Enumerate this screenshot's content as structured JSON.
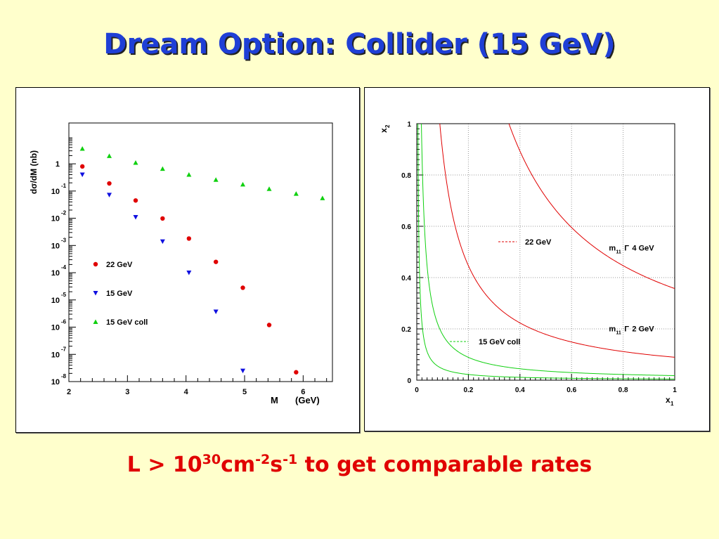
{
  "slide": {
    "title": "Dream Option: Collider (15 GeV)",
    "caption": {
      "prefix": "L > 10",
      "exp1": "30",
      "unit1": "cm",
      "exp2": "-2",
      "unit2": "s",
      "exp3": "-1",
      "suffix": " to get comparable rates"
    },
    "colors": {
      "title": "#1f3fd6",
      "caption": "#e00000",
      "background": "#ffffcc"
    }
  },
  "chart_data": [
    {
      "type": "scatter",
      "xlabel": "M",
      "xlabel_unit": "(GeV)",
      "ylabel": "dσ/dM (nb)",
      "yscale": "log",
      "xlim": [
        2,
        6.5
      ],
      "ylim_exp": [
        -8,
        1.5
      ],
      "xticks": [
        "2",
        "3",
        "4",
        "5",
        "6"
      ],
      "yticks": [
        {
          "base": "1",
          "exp": "",
          "e": 0
        },
        {
          "base": "10",
          "exp": "-1",
          "e": -1
        },
        {
          "base": "10",
          "exp": "-2",
          "e": -2
        },
        {
          "base": "10",
          "exp": "-3",
          "e": -3
        },
        {
          "base": "10",
          "exp": "-4",
          "e": -4
        },
        {
          "base": "10",
          "exp": "-5",
          "e": -5
        },
        {
          "base": "10",
          "exp": "-6",
          "e": -6
        },
        {
          "base": "10",
          "exp": "-7",
          "e": -7
        },
        {
          "base": "10",
          "exp": "-8",
          "e": -8
        }
      ],
      "legend_position": "bottom-left",
      "series": [
        {
          "name": "22 GeV",
          "marker": "circle",
          "color": "#e00000",
          "points": [
            [
              2.23,
              0.8
            ],
            [
              2.69,
              0.19
            ],
            [
              3.14,
              0.045
            ],
            [
              3.6,
              0.0098
            ],
            [
              4.05,
              0.0018
            ],
            [
              4.51,
              0.00025
            ],
            [
              4.97,
              2.8e-05
            ],
            [
              5.42,
              1.2e-06
            ],
            [
              5.88,
              2.2e-08
            ]
          ]
        },
        {
          "name": "15 GeV",
          "marker": "triangle-down",
          "color": "#1010e0",
          "points": [
            [
              2.23,
              0.4
            ],
            [
              2.69,
              0.072
            ],
            [
              3.14,
              0.011
            ],
            [
              3.6,
              0.0014
            ],
            [
              4.05,
              0.0001
            ],
            [
              4.51,
              3.7e-06
            ],
            [
              4.97,
              2.5e-08
            ]
          ]
        },
        {
          "name": "15 GeV coll",
          "marker": "triangle-up",
          "color": "#10d010",
          "points": [
            [
              2.23,
              3.6
            ],
            [
              2.69,
              1.95
            ],
            [
              3.14,
              1.1
            ],
            [
              3.6,
              0.66
            ],
            [
              4.05,
              0.4
            ],
            [
              4.51,
              0.26
            ],
            [
              4.97,
              0.175
            ],
            [
              5.42,
              0.12
            ],
            [
              5.88,
              0.08
            ],
            [
              6.33,
              0.055
            ]
          ]
        }
      ]
    },
    {
      "type": "line",
      "xlabel": "x",
      "xlabel_sub": "1",
      "ylabel": "x",
      "ylabel_sub": "2",
      "xlim": [
        0,
        1
      ],
      "ylim": [
        0,
        1
      ],
      "xticks": [
        "0",
        "0.2",
        "0.4",
        "0.6",
        "0.8",
        "1"
      ],
      "yticks": [
        "0",
        "0.2",
        "0.4",
        "0.6",
        "0.8",
        "1"
      ],
      "grid": true,
      "legend": [
        {
          "label": "22 GeV",
          "color": "#e00000"
        },
        {
          "label": "15 GeV coll",
          "color": "#10d010"
        }
      ],
      "annotations": [
        {
          "text_main": "m",
          "text_sub": "11",
          "text_sym": "Γ",
          "text_value": "4 GeV",
          "x": 0.745,
          "y": 0.505
        },
        {
          "text_main": "m",
          "text_sub": "11",
          "text_sym": "Γ",
          "text_value": "2 GeV",
          "x": 0.745,
          "y": 0.19
        }
      ],
      "curves": [
        {
          "series": "22 GeV",
          "color": "#e00000",
          "x1x2": 0.3572
        },
        {
          "series": "22 GeV",
          "color": "#e00000",
          "x1x2": 0.0893
        },
        {
          "series": "15 GeV coll",
          "color": "#10d010",
          "x1x2": 0.0178
        },
        {
          "series": "15 GeV coll",
          "color": "#10d010",
          "x1x2": 0.00445
        }
      ]
    }
  ]
}
